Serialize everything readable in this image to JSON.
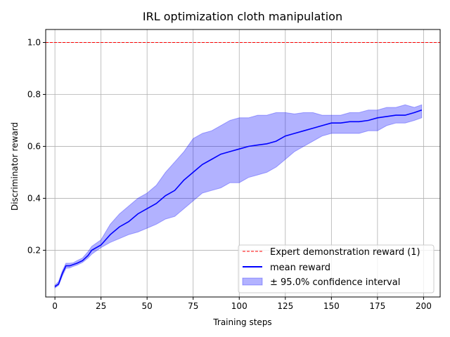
{
  "chart_data": {
    "type": "line",
    "title": "IRL optimization cloth manipulation",
    "xlabel": "Training steps",
    "ylabel": "Discriminator reward",
    "xlim": [
      -5,
      209
    ],
    "ylim": [
      0.02,
      1.05
    ],
    "xticks": [
      0,
      25,
      50,
      75,
      100,
      125,
      150,
      175,
      200
    ],
    "yticks": [
      0.2,
      0.4,
      0.6,
      0.8,
      1.0
    ],
    "xtick_labels": [
      "0",
      "25",
      "50",
      "75",
      "100",
      "125",
      "150",
      "175",
      "200"
    ],
    "ytick_labels": [
      "0.2",
      "0.4",
      "0.6",
      "0.8",
      "1.0"
    ],
    "grid": true,
    "legend_position": "lower-right",
    "reference_line": {
      "name": "Expert demonstration reward (1)",
      "y": 1.0,
      "color": "#ff0000",
      "style": "dashed"
    },
    "series": [
      {
        "name": "mean reward",
        "color": "#0000ff",
        "x": [
          0,
          2,
          4,
          6,
          8,
          10,
          12,
          15,
          18,
          20,
          25,
          30,
          35,
          40,
          45,
          50,
          55,
          60,
          65,
          70,
          75,
          80,
          85,
          90,
          95,
          100,
          105,
          110,
          115,
          120,
          125,
          130,
          135,
          140,
          145,
          150,
          155,
          160,
          165,
          170,
          175,
          180,
          185,
          190,
          195,
          199
        ],
        "y": [
          0.06,
          0.07,
          0.11,
          0.14,
          0.14,
          0.145,
          0.15,
          0.16,
          0.18,
          0.2,
          0.22,
          0.26,
          0.29,
          0.31,
          0.34,
          0.36,
          0.38,
          0.41,
          0.43,
          0.47,
          0.5,
          0.53,
          0.55,
          0.57,
          0.58,
          0.59,
          0.6,
          0.605,
          0.61,
          0.62,
          0.64,
          0.65,
          0.66,
          0.67,
          0.68,
          0.69,
          0.69,
          0.695,
          0.695,
          0.7,
          0.71,
          0.715,
          0.72,
          0.72,
          0.73,
          0.74
        ]
      }
    ],
    "band": {
      "name": "± 95.0% confidence interval",
      "color": "#0000ff",
      "opacity": 0.3,
      "x": [
        0,
        2,
        4,
        6,
        8,
        10,
        12,
        15,
        18,
        20,
        25,
        30,
        35,
        40,
        45,
        50,
        55,
        60,
        65,
        70,
        75,
        80,
        85,
        90,
        95,
        100,
        105,
        110,
        115,
        120,
        125,
        130,
        135,
        140,
        145,
        150,
        155,
        160,
        165,
        170,
        175,
        180,
        185,
        190,
        195,
        199
      ],
      "upper": [
        0.065,
        0.08,
        0.12,
        0.15,
        0.15,
        0.152,
        0.16,
        0.17,
        0.195,
        0.215,
        0.24,
        0.3,
        0.34,
        0.37,
        0.4,
        0.42,
        0.45,
        0.5,
        0.54,
        0.58,
        0.63,
        0.65,
        0.66,
        0.68,
        0.7,
        0.71,
        0.71,
        0.72,
        0.72,
        0.73,
        0.73,
        0.725,
        0.73,
        0.73,
        0.72,
        0.72,
        0.72,
        0.73,
        0.73,
        0.74,
        0.74,
        0.75,
        0.75,
        0.76,
        0.75,
        0.76
      ],
      "lower": [
        0.055,
        0.065,
        0.1,
        0.13,
        0.132,
        0.138,
        0.143,
        0.153,
        0.17,
        0.185,
        0.21,
        0.23,
        0.245,
        0.26,
        0.27,
        0.285,
        0.3,
        0.32,
        0.33,
        0.36,
        0.39,
        0.42,
        0.43,
        0.44,
        0.46,
        0.46,
        0.48,
        0.49,
        0.5,
        0.52,
        0.55,
        0.58,
        0.6,
        0.62,
        0.64,
        0.65,
        0.65,
        0.65,
        0.65,
        0.66,
        0.66,
        0.68,
        0.69,
        0.69,
        0.7,
        0.71
      ]
    }
  }
}
